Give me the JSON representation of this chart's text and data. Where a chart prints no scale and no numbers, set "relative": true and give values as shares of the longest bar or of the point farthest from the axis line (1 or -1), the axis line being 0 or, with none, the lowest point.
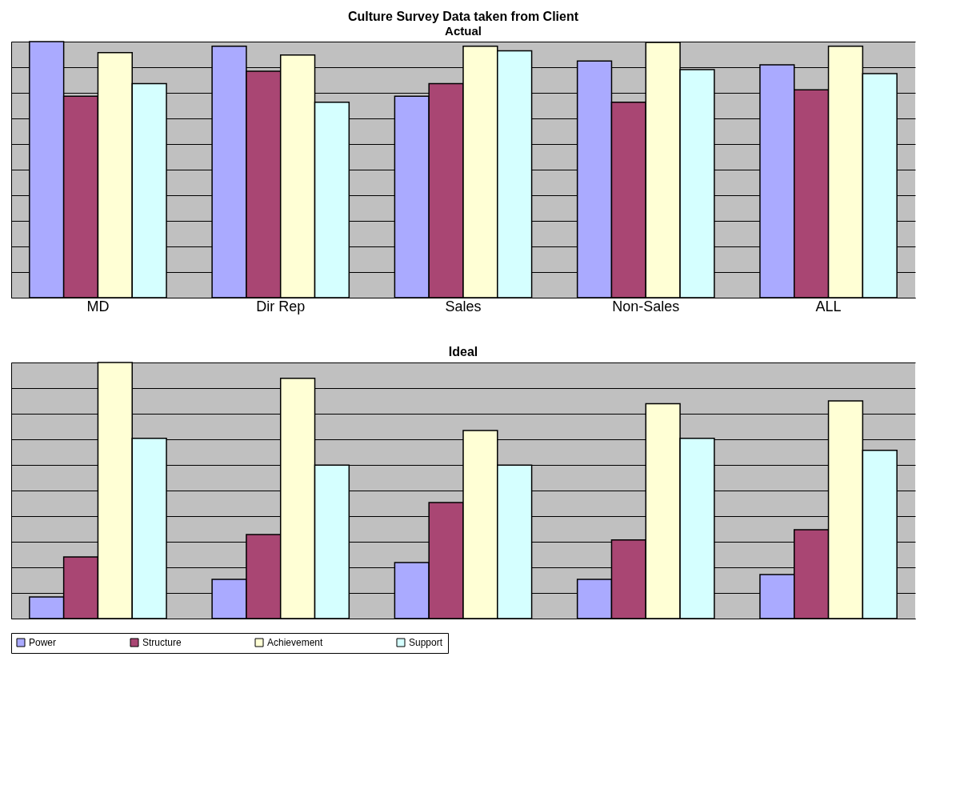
{
  "chart_data": [
    {
      "type": "bar",
      "title": "Culture Survey Data taken from Client",
      "subtitle": "Actual",
      "relative": true,
      "grid": "y",
      "tick_labels": "x",
      "categories": [
        "MD",
        "Dir Rep",
        "Sales",
        "Non-Sales",
        "ALL"
      ],
      "series": [
        {
          "color": "#aaaaff",
          "values": [
            1,
            0.982,
            0.787,
            0.924,
            0.909
          ]
        },
        {
          "color": "#a94673",
          "values": [
            0.787,
            0.884,
            0.836,
            0.763,
            0.812
          ]
        },
        {
          "color": "#ffffd5",
          "values": [
            0.957,
            0.948,
            0.982,
            0.997,
            0.982
          ]
        },
        {
          "color": "#d5ffff",
          "values": [
            0.836,
            0.763,
            0.964,
            0.891,
            0.875
          ]
        }
      ]
    },
    {
      "type": "bar",
      "title": "Ideal",
      "relative": true,
      "grid": "y",
      "tick_labels": false,
      "legend": "bottom",
      "categories": [
        null,
        null,
        null,
        null,
        null
      ],
      "series": [
        {
          "name": "Power",
          "color": "#aaaaff",
          "values": [
            0.084,
            0.153,
            0.219,
            0.153,
            0.172
          ]
        },
        {
          "name": "Structure",
          "color": "#a94673",
          "values": [
            0.241,
            0.328,
            0.453,
            0.307,
            0.347
          ]
        },
        {
          "name": "Achievement",
          "color": "#ffffd5",
          "values": [
            1,
            0.938,
            0.734,
            0.839,
            0.85
          ]
        },
        {
          "name": "Support",
          "color": "#d5ffff",
          "values": [
            0.704,
            0.599,
            0.599,
            0.704,
            0.657
          ]
        }
      ]
    }
  ]
}
